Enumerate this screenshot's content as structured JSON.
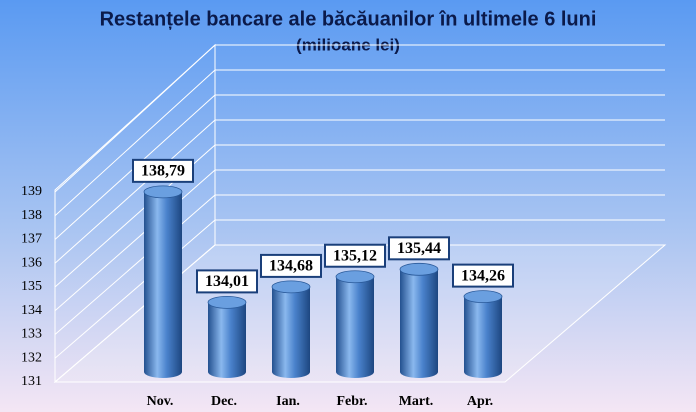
{
  "chart_data": {
    "type": "bar",
    "title": "Restanțele bancare ale băcăuanilor în ultimele 6 luni",
    "subtitle": "(milioane lei)",
    "categories": [
      "Nov.",
      "Dec.",
      "Ian.",
      "Febr.",
      "Mart.",
      "Apr."
    ],
    "values": [
      138.79,
      134.01,
      134.68,
      135.12,
      135.44,
      134.26
    ],
    "value_labels": [
      "138,79",
      "134,01",
      "134,68",
      "135,12",
      "135,44",
      "134,26"
    ],
    "color": "#3f78c4",
    "ylim": [
      131,
      139
    ],
    "yticks": [
      131,
      132,
      133,
      134,
      135,
      136,
      137,
      138,
      139
    ],
    "grid": true
  }
}
